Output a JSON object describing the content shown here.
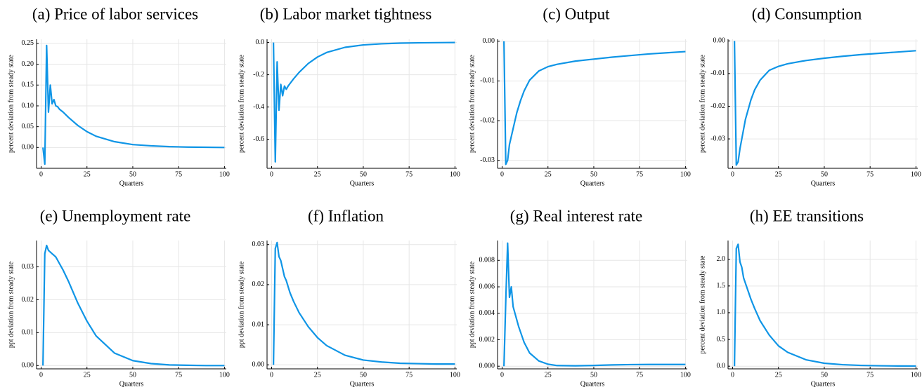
{
  "chart_data": [
    {
      "type": "line",
      "title": "(a) Price of labor services",
      "xlabel": "Quarters",
      "ylabel": "percent deviation from steady state",
      "x": [
        1,
        2,
        3,
        4,
        5,
        6,
        7,
        8,
        9,
        10,
        12,
        15,
        20,
        25,
        30,
        40,
        50,
        60,
        70,
        80,
        90,
        100
      ],
      "series": [
        {
          "color": "#0f95e6",
          "values": [
            0,
            -0.04,
            0.245,
            0.085,
            0.15,
            0.105,
            0.115,
            0.1,
            0.098,
            0.092,
            0.085,
            0.072,
            0.053,
            0.038,
            0.027,
            0.014,
            0.007,
            0.004,
            0.002,
            0.001,
            0.0005,
            0
          ]
        }
      ],
      "xlim": [
        -2.5,
        101
      ],
      "xticks": [
        0,
        25,
        50,
        75,
        100
      ],
      "ylim": [
        -0.05,
        0.26
      ],
      "yticks": [
        {
          "value": 0,
          "label": "0.00"
        },
        0.05,
        {
          "value": 0.1,
          "label": "0.10"
        },
        0.15,
        {
          "value": 0.2,
          "label": "0.20"
        },
        0.25
      ],
      "grid": true
    },
    {
      "type": "line",
      "title": "(b) Labor market tightness",
      "xlabel": "Quarters",
      "ylabel": "percent deviation from steady state",
      "x": [
        1,
        2,
        3,
        4,
        5,
        6,
        7,
        8,
        9,
        10,
        12,
        15,
        20,
        25,
        30,
        40,
        50,
        60,
        70,
        80,
        90,
        100
      ],
      "series": [
        {
          "color": "#0f95e6",
          "values": [
            0,
            -0.74,
            -0.12,
            -0.42,
            -0.26,
            -0.33,
            -0.27,
            -0.29,
            -0.27,
            -0.255,
            -0.225,
            -0.185,
            -0.13,
            -0.09,
            -0.062,
            -0.03,
            -0.015,
            -0.008,
            -0.004,
            -0.002,
            -0.001,
            0
          ]
        }
      ],
      "xlim": [
        -2.5,
        101
      ],
      "xticks": [
        0,
        25,
        50,
        75,
        100
      ],
      "ylim": [
        -0.78,
        0.02
      ],
      "yticks": [
        -0.6,
        -0.4,
        -0.2,
        {
          "value": 0,
          "label": "0.0"
        }
      ],
      "grid": true
    },
    {
      "type": "line",
      "title": "(c) Output",
      "xlabel": "Quarters",
      "ylabel": "percent deviation from steady state",
      "x": [
        1,
        2,
        3,
        4,
        5,
        6,
        7,
        8,
        9,
        10,
        12,
        15,
        20,
        25,
        30,
        40,
        50,
        60,
        70,
        80,
        90,
        100
      ],
      "series": [
        {
          "color": "#0f95e6",
          "values": [
            0,
            -0.031,
            -0.03,
            -0.026,
            -0.024,
            -0.022,
            -0.02,
            -0.018,
            -0.0165,
            -0.015,
            -0.0125,
            -0.0098,
            -0.0075,
            -0.0064,
            -0.0058,
            -0.005,
            -0.0045,
            -0.004,
            -0.0036,
            -0.0032,
            -0.0029,
            -0.0026
          ]
        }
      ],
      "xlim": [
        -2.5,
        101
      ],
      "xticks": [
        0,
        25,
        50,
        75,
        100
      ],
      "ylim": [
        -0.032,
        0.0005
      ],
      "yticks": [
        {
          "value": -0.03,
          "label": "-0.03"
        },
        {
          "value": -0.02,
          "label": "-0.02"
        },
        {
          "value": -0.01,
          "label": "-0.01"
        },
        {
          "value": 0,
          "label": "0.00"
        }
      ],
      "grid": true
    },
    {
      "type": "line",
      "title": "(d) Consumption",
      "xlabel": "Quarters",
      "ylabel": "percent deviation from steady state",
      "x": [
        1,
        2,
        3,
        4,
        5,
        6,
        7,
        8,
        9,
        10,
        12,
        15,
        20,
        25,
        30,
        40,
        50,
        60,
        70,
        80,
        90,
        100
      ],
      "series": [
        {
          "color": "#0f95e6",
          "values": [
            0,
            -0.038,
            -0.037,
            -0.033,
            -0.03,
            -0.027,
            -0.024,
            -0.022,
            -0.02,
            -0.018,
            -0.015,
            -0.012,
            -0.009,
            -0.0078,
            -0.007,
            -0.006,
            -0.0053,
            -0.0047,
            -0.0042,
            -0.0038,
            -0.0034,
            -0.003
          ]
        }
      ],
      "xlim": [
        -2.5,
        101
      ],
      "xticks": [
        0,
        25,
        50,
        75,
        100
      ],
      "ylim": [
        -0.039,
        0.0005
      ],
      "yticks": [
        {
          "value": -0.03,
          "label": "-0.03"
        },
        {
          "value": -0.02,
          "label": "-0.02"
        },
        {
          "value": -0.01,
          "label": "-0.01"
        },
        {
          "value": 0,
          "label": "0.00"
        }
      ],
      "grid": true
    },
    {
      "type": "line",
      "title": "(e) Unemployment rate",
      "xlabel": "Quarters",
      "ylabel": "ppt deviation from steady state",
      "x": [
        1,
        2,
        3,
        4,
        5,
        6,
        7,
        8,
        9,
        10,
        12,
        15,
        20,
        25,
        30,
        40,
        50,
        60,
        70,
        80,
        90,
        100
      ],
      "series": [
        {
          "color": "#0f95e6",
          "values": [
            0,
            0.034,
            0.0365,
            0.035,
            0.0345,
            0.034,
            0.0335,
            0.033,
            0.032,
            0.031,
            0.029,
            0.0255,
            0.019,
            0.0135,
            0.009,
            0.0038,
            0.0015,
            0.0006,
            0.0002,
            0.0001,
            0,
            0
          ]
        }
      ],
      "xlim": [
        -2.5,
        101
      ],
      "xticks": [
        0,
        25,
        50,
        75,
        100
      ],
      "ylim": [
        -0.001,
        0.038
      ],
      "yticks": [
        {
          "value": 0,
          "label": "0.00"
        },
        0.01,
        0.02,
        0.03
      ],
      "grid": true
    },
    {
      "type": "line",
      "title": "(f) Inflation",
      "xlabel": "Quarters",
      "ylabel": "ppt deviation from steady state",
      "x": [
        1,
        2,
        3,
        4,
        5,
        6,
        7,
        8,
        9,
        10,
        12,
        15,
        20,
        25,
        30,
        40,
        50,
        60,
        70,
        80,
        90,
        100
      ],
      "series": [
        {
          "color": "#0f95e6",
          "values": [
            0,
            0.029,
            0.0305,
            0.027,
            0.026,
            0.024,
            0.022,
            0.021,
            0.0195,
            0.018,
            0.0158,
            0.013,
            0.0095,
            0.0068,
            0.0048,
            0.0024,
            0.0012,
            0.0007,
            0.0004,
            0.0003,
            0.0002,
            0.0002
          ]
        }
      ],
      "xlim": [
        -2.5,
        101
      ],
      "xticks": [
        0,
        25,
        50,
        75,
        100
      ],
      "ylim": [
        -0.001,
        0.031
      ],
      "yticks": [
        {
          "value": 0,
          "label": "0.00"
        },
        0.01,
        0.02,
        0.03
      ],
      "grid": true
    },
    {
      "type": "line",
      "title": "(g) Real interest rate",
      "xlabel": "Quarters",
      "ylabel": "ppt deviation from steady state",
      "x": [
        1,
        2,
        3,
        4,
        5,
        6,
        7,
        8,
        9,
        10,
        12,
        15,
        20,
        25,
        30,
        40,
        50,
        60,
        70,
        80,
        90,
        100
      ],
      "series": [
        {
          "color": "#0f95e6",
          "values": [
            0,
            0.005,
            0.0093,
            0.0052,
            0.006,
            0.0045,
            0.004,
            0.0035,
            0.003,
            0.0026,
            0.0018,
            0.001,
            0.0004,
            0.00015,
            5e-05,
            3e-05,
            6e-05,
            0.0001,
            0.00012,
            0.00013,
            0.00013,
            0.00013
          ]
        }
      ],
      "xlim": [
        -2.5,
        101
      ],
      "xticks": [
        0,
        25,
        50,
        75,
        100
      ],
      "ylim": [
        -0.0002,
        0.0095
      ],
      "yticks": [
        {
          "value": 0,
          "label": "0.000"
        },
        0.002,
        0.004,
        0.006,
        0.008
      ],
      "grid": true
    },
    {
      "type": "line",
      "title": "(h) EE transitions",
      "xlabel": "Quarters",
      "ylabel": "percent deviation from steady state",
      "x": [
        1,
        2,
        3,
        4,
        5,
        6,
        7,
        8,
        9,
        10,
        12,
        15,
        20,
        25,
        30,
        40,
        50,
        60,
        70,
        80,
        90,
        100
      ],
      "series": [
        {
          "color": "#0f95e6",
          "values": [
            0,
            2.2,
            2.28,
            1.95,
            1.85,
            1.65,
            1.55,
            1.45,
            1.35,
            1.25,
            1.08,
            0.85,
            0.58,
            0.38,
            0.26,
            0.12,
            0.055,
            0.028,
            0.015,
            0.008,
            0.004,
            0.002
          ]
        }
      ],
      "xlim": [
        -2.5,
        101
      ],
      "xticks": [
        0,
        25,
        50,
        75,
        100
      ],
      "ylim": [
        -0.05,
        2.35
      ],
      "yticks": [
        {
          "value": 0,
          "label": "0.0"
        },
        0.5,
        {
          "value": 1,
          "label": "1.0"
        },
        1.5,
        {
          "value": 2,
          "label": "2.0"
        }
      ],
      "grid": true
    }
  ]
}
